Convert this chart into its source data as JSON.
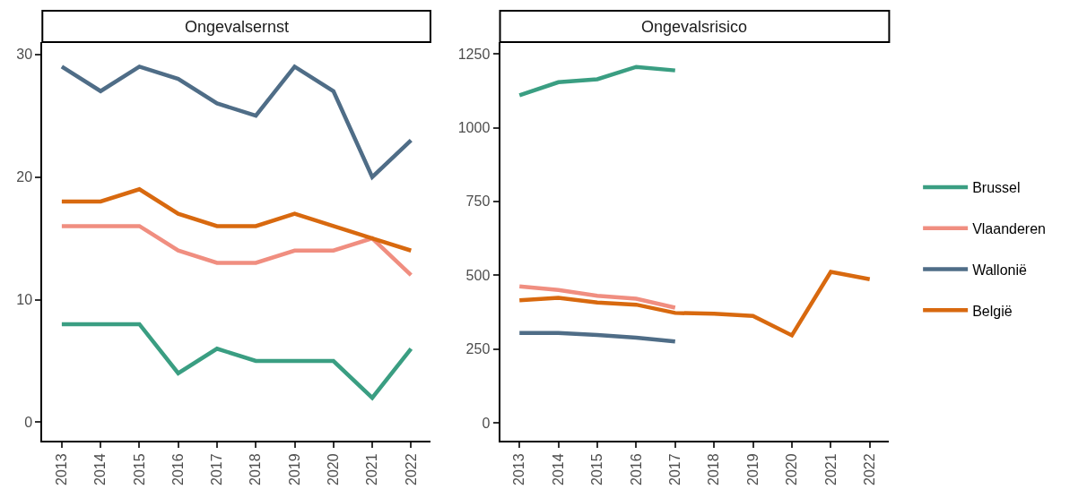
{
  "chart_data": [
    {
      "type": "line",
      "title": "Ongevalsernst",
      "categories": [
        "2013",
        "2014",
        "2015",
        "2016",
        "2017",
        "2018",
        "2019",
        "2020",
        "2021",
        "2022"
      ],
      "ylim": [
        -1.5,
        31
      ],
      "yticks": [
        0,
        10,
        20,
        30
      ],
      "legend": "right",
      "marker": "none",
      "line_style": "solid",
      "series": [
        {
          "name": "Brussel",
          "color": "#3a9e82",
          "values": [
            8,
            8,
            8,
            4,
            6,
            5,
            5,
            5,
            2,
            6
          ]
        },
        {
          "name": "Vlaanderen",
          "color": "#f08e80",
          "values": [
            16,
            16,
            16,
            14,
            13,
            13,
            14,
            14,
            15,
            12
          ]
        },
        {
          "name": "Wallonië",
          "color": "#4f6d87",
          "values": [
            29,
            27,
            29,
            28,
            26,
            25,
            29,
            27,
            20,
            23
          ]
        },
        {
          "name": "België",
          "color": "#d8690f",
          "values": [
            18,
            18,
            19,
            17,
            16,
            16,
            17,
            16,
            15,
            14
          ]
        }
      ]
    },
    {
      "type": "line",
      "title": "Ongevalsrisico",
      "categories": [
        "2013",
        "2014",
        "2015",
        "2016",
        "2017",
        "2018",
        "2019",
        "2020",
        "2021",
        "2022"
      ],
      "ylim": [
        -61,
        1290
      ],
      "yticks": [
        0,
        250,
        500,
        750,
        1000,
        1250
      ],
      "legend": "right",
      "marker": "none",
      "line_style": "solid",
      "series": [
        {
          "name": "Brussel",
          "color": "#3a9e82",
          "values": [
            1110,
            1154,
            1164,
            1206,
            1194,
            null,
            null,
            null,
            null,
            null
          ]
        },
        {
          "name": "Vlaanderen",
          "color": "#f08e80",
          "values": [
            462,
            450,
            430,
            420,
            390,
            null,
            null,
            null,
            null,
            null
          ]
        },
        {
          "name": "Wallonië",
          "color": "#4f6d87",
          "values": [
            304,
            304,
            297,
            288,
            275,
            null,
            null,
            null,
            null,
            null
          ]
        },
        {
          "name": "België",
          "color": "#d8690f",
          "values": [
            415,
            423,
            407,
            400,
            372,
            369,
            362,
            296,
            511,
            486
          ]
        }
      ]
    }
  ]
}
